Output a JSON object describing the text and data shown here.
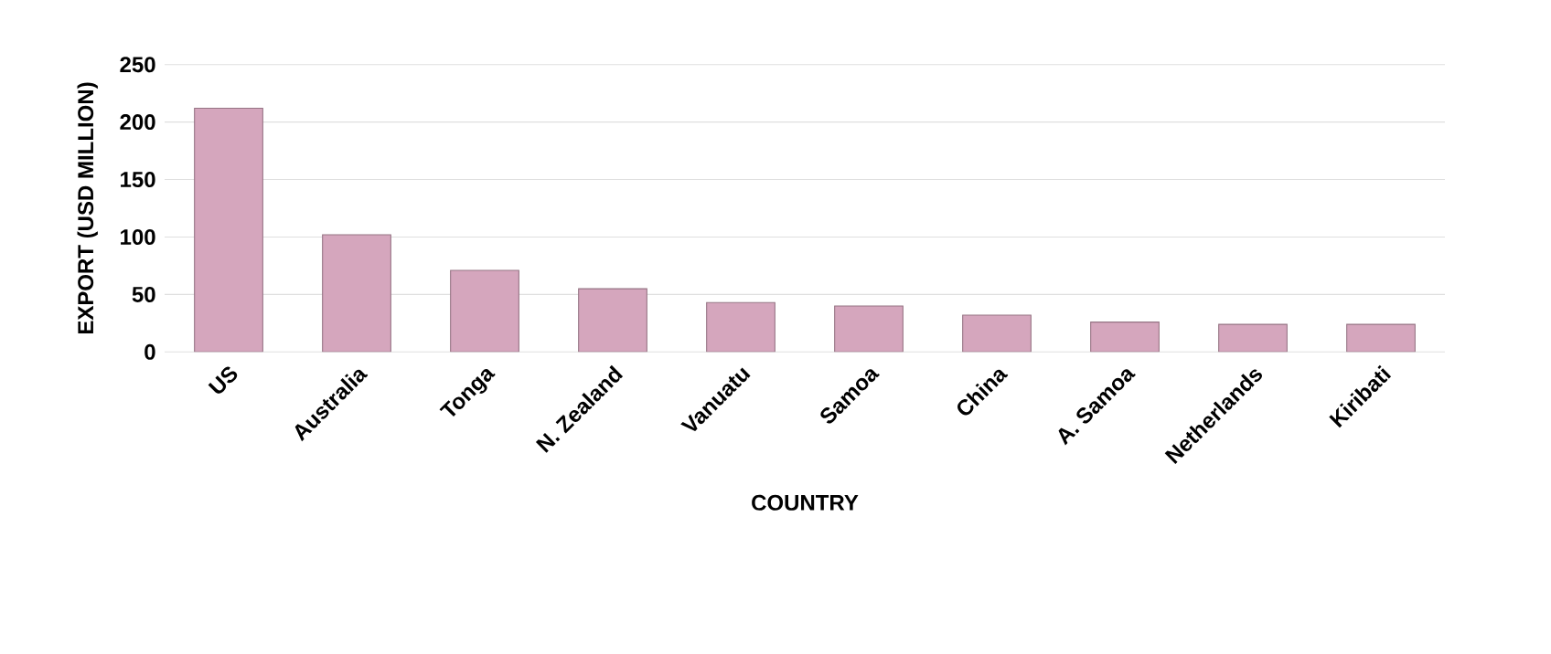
{
  "chart_data": {
    "type": "bar",
    "xlabel": "COUNTRY",
    "ylabel": "EXPORT (USD MILLION)",
    "categories": [
      "US",
      "Australia",
      "Tonga",
      "N. Zealand",
      "Vanuatu",
      "Samoa",
      "China",
      "A. Samoa",
      "Netherlands",
      "Kiribati"
    ],
    "values": [
      212,
      102,
      71,
      55,
      43,
      40,
      32,
      26,
      24,
      24
    ],
    "color": "#d5a6bd",
    "ylim": [
      0,
      250
    ],
    "yticks": [
      0,
      50,
      100,
      150,
      200,
      250
    ],
    "grid": "y"
  }
}
